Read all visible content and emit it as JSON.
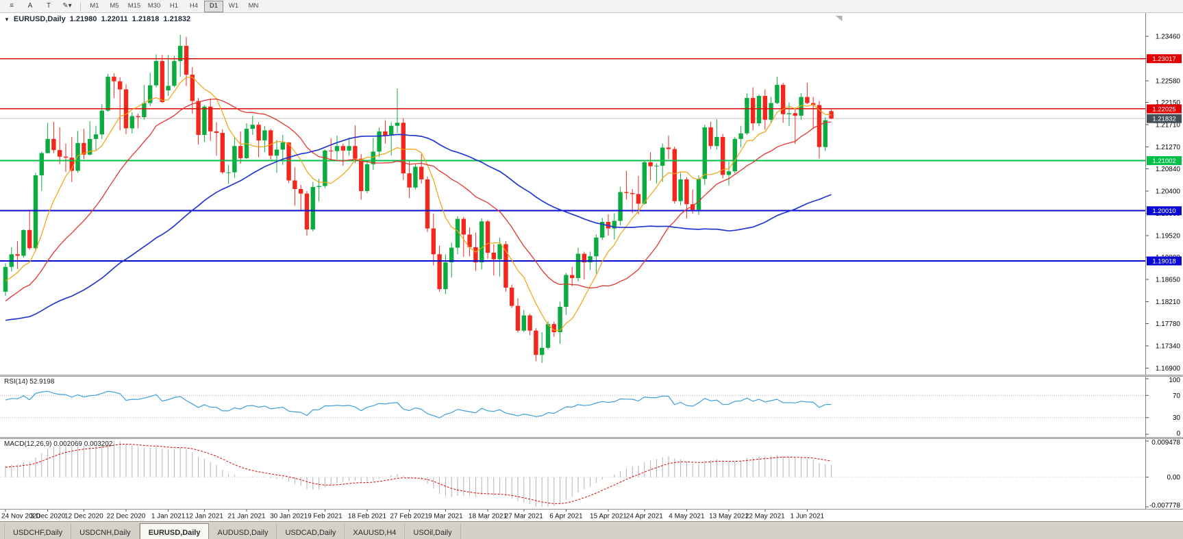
{
  "toolbar": {
    "tools": [
      {
        "name": "chart-objects-icon",
        "glyph": "≡"
      },
      {
        "name": "text-label-tool",
        "glyph": "A"
      },
      {
        "name": "text-cursor-tool",
        "glyph": "T"
      },
      {
        "name": "draw-tool",
        "glyph": "✎▾"
      }
    ],
    "timeframes": [
      "M1",
      "M5",
      "M15",
      "M30",
      "H1",
      "H4",
      "D1",
      "W1",
      "MN"
    ],
    "active_timeframe": "D1"
  },
  "chart": {
    "symbol_period": "EURUSD,Daily",
    "menu_icon": "▼",
    "ohlc": {
      "o": "1.21980",
      "h": "1.22011",
      "l": "1.21818",
      "c": "1.21832"
    }
  },
  "price_scale": {
    "labels": [
      "1.23460",
      "1.23020",
      "1.22580",
      "1.22150",
      "1.21710",
      "1.21270",
      "1.20840",
      "1.20400",
      "1.19960",
      "1.19520",
      "1.19090",
      "1.18650",
      "1.18210",
      "1.17780",
      "1.17340",
      "1.16900"
    ]
  },
  "hlines": [
    {
      "price": 1.23017,
      "label": "1.23017",
      "color": "#e00000",
      "width": 1.4
    },
    {
      "price": 1.22025,
      "label": "1.22025",
      "color": "#e00000",
      "width": 1.4
    },
    {
      "price": 1.21002,
      "label": "1.21002",
      "color": "#00c04a",
      "width": 1.6
    },
    {
      "price": 1.2001,
      "label": "1.20010",
      "color": "#0a0ad0",
      "width": 2
    },
    {
      "price": 1.19018,
      "label": "1.19018",
      "color": "#0a0ad0",
      "width": 2
    }
  ],
  "current_price": {
    "value": 1.21832,
    "label": "1.21832",
    "tag_color": "#454f58"
  },
  "rsi_pane": {
    "label": "RSI(14) 52.9198",
    "period": 14,
    "value": "52.9198",
    "scale_labels": [
      "100",
      "70",
      "30",
      "0"
    ],
    "levels": [
      70,
      30
    ],
    "line_color": "#3aa0dc"
  },
  "macd_pane": {
    "label": "MACD(12,26,9) 0.002069 0.003202",
    "params": "12,26,9",
    "macd_value": "0.002069",
    "signal_value": "0.003202",
    "scale_labels": [
      "0.009478",
      "0.00",
      "-0.007778"
    ],
    "hist_color": "#b2b2b2",
    "signal_color": "#dd0000"
  },
  "tabs": {
    "items": [
      "USDCHF,Daily",
      "USDCNH,Daily",
      "EURUSD,Daily",
      "AUDUSD,Daily",
      "USDCAD,Daily",
      "XAUUSD,H4",
      "USOil,Daily"
    ],
    "active_index": 2
  },
  "chart_data": {
    "type": "candlestick",
    "symbol": "EURUSD",
    "timeframe": "Daily",
    "title": "EURUSD,Daily 1.21980 1.22011 1.21818 1.21832",
    "y_range": {
      "top": 1.2392,
      "bottom": 1.1677
    },
    "colors": {
      "bull": "#0cab3f",
      "bear": "#f3271c"
    },
    "moving_averages": [
      {
        "period": 8,
        "color": "#f2a20d",
        "width": 1.2
      },
      {
        "period": 21,
        "color": "#e4342c",
        "width": 1.3
      },
      {
        "period": 55,
        "color": "#2337cf",
        "width": 1.7
      }
    ],
    "x_labels": [
      "24 Nov 2020",
      "3 Dec 2020",
      "12 Dec 2020",
      "22 Dec 2020",
      "1 Jan 2021",
      "12 Jan 2021",
      "21 Jan 2021",
      "30 Jan 2021",
      "9 Feb 2021",
      "18 Feb 2021",
      "27 Feb 2021",
      "9 Mar 2021",
      "18 Mar 2021",
      "27 Mar 2021",
      "6 Apr 2021",
      "15 Apr 2021",
      "24 Apr 2021",
      "4 May 2021",
      "13 May 2021",
      "22 May 2021",
      "1 Jun 2021"
    ],
    "x_label_last_index": 133,
    "pre_closes": [
      1.1782,
      1.1815,
      1.1837,
      1.1845,
      1.182,
      1.1787,
      1.1755,
      1.1741,
      1.1762,
      1.179,
      1.1835,
      1.1846,
      1.1802,
      1.1775,
      1.174,
      1.172,
      1.1745,
      1.1718,
      1.1686,
      1.1713,
      1.1745,
      1.1748,
      1.172,
      1.176,
      1.1786,
      1.1812,
      1.1842,
      1.182,
      1.1792,
      1.1748,
      1.17,
      1.1672,
      1.1645,
      1.1648,
      1.17,
      1.1721,
      1.1745,
      1.1772,
      1.181,
      1.1805,
      1.1772,
      1.1752,
      1.1775,
      1.1802,
      1.1832,
      1.1852,
      1.1871,
      1.1863,
      1.1855,
      1.184,
      1.1858,
      1.187,
      1.1885,
      1.1863,
      1.1838
    ],
    "candles": [
      [
        1.1841,
        1.1897,
        1.1833,
        1.189
      ],
      [
        1.189,
        1.1929,
        1.1881,
        1.1915
      ],
      [
        1.1915,
        1.1941,
        1.1886,
        1.1912
      ],
      [
        1.1912,
        1.1964,
        1.1908,
        1.1963
      ],
      [
        1.1963,
        1.2003,
        1.1924,
        1.1927
      ],
      [
        1.1927,
        1.2076,
        1.1921,
        1.2071
      ],
      [
        1.2071,
        1.2118,
        1.204,
        1.2115
      ],
      [
        1.2115,
        1.2175,
        1.2114,
        1.2143
      ],
      [
        1.2143,
        1.2177,
        1.2115,
        1.2121
      ],
      [
        1.2121,
        1.2166,
        1.2093,
        1.2108
      ],
      [
        1.2108,
        1.2134,
        1.2078,
        1.2106
      ],
      [
        1.2106,
        1.2147,
        1.2058,
        1.208
      ],
      [
        1.208,
        1.2159,
        1.2076,
        1.2135
      ],
      [
        1.2135,
        1.2163,
        1.2103,
        1.2112
      ],
      [
        1.2112,
        1.2178,
        1.211,
        1.2143
      ],
      [
        1.2143,
        1.2169,
        1.2121,
        1.2152
      ],
      [
        1.2152,
        1.2212,
        1.2143,
        1.2199
      ],
      [
        1.2199,
        1.2272,
        1.2197,
        1.2266
      ],
      [
        1.2266,
        1.2273,
        1.2224,
        1.2257
      ],
      [
        1.2257,
        1.2265,
        1.216,
        1.2241
      ],
      [
        1.2241,
        1.2251,
        1.2152,
        1.2164
      ],
      [
        1.2164,
        1.2196,
        1.2154,
        1.2188
      ],
      [
        1.2188,
        1.2193,
        1.2164,
        1.2186
      ],
      [
        1.2186,
        1.225,
        1.2181,
        1.2214
      ],
      [
        1.2214,
        1.2274,
        1.2208,
        1.2249
      ],
      [
        1.2249,
        1.231,
        1.2245,
        1.2297
      ],
      [
        1.2297,
        1.2309,
        1.2214,
        1.2216
      ],
      [
        1.2239,
        1.2309,
        1.2228,
        1.2248
      ],
      [
        1.2248,
        1.2307,
        1.2245,
        1.2297
      ],
      [
        1.2297,
        1.2349,
        1.2266,
        1.2327
      ],
      [
        1.2327,
        1.2345,
        1.2248,
        1.227
      ],
      [
        1.227,
        1.2285,
        1.2193,
        1.2218
      ],
      [
        1.2218,
        1.2224,
        1.2132,
        1.2151
      ],
      [
        1.2151,
        1.221,
        1.2137,
        1.2207
      ],
      [
        1.2207,
        1.2223,
        1.2139,
        1.2158
      ],
      [
        1.2158,
        1.2176,
        1.211,
        1.2155
      ],
      [
        1.2155,
        1.2162,
        1.2074,
        1.2077
      ],
      [
        1.2077,
        1.2091,
        1.2054,
        1.2077
      ],
      [
        1.2077,
        1.2145,
        1.2066,
        1.2129
      ],
      [
        1.2129,
        1.2158,
        1.2094,
        1.2105
      ],
      [
        1.2105,
        1.2174,
        1.2103,
        1.2163
      ],
      [
        1.2163,
        1.2189,
        1.2151,
        1.2171
      ],
      [
        1.2171,
        1.2176,
        1.2107,
        1.214
      ],
      [
        1.214,
        1.2169,
        1.2117,
        1.216
      ],
      [
        1.216,
        1.2163,
        1.2102,
        1.211
      ],
      [
        1.211,
        1.2141,
        1.2076,
        1.2122
      ],
      [
        1.2122,
        1.2151,
        1.2092,
        1.2136
      ],
      [
        1.2136,
        1.2137,
        1.2056,
        1.2061
      ],
      [
        1.2061,
        1.2087,
        1.2011,
        1.2044
      ],
      [
        1.2044,
        1.2052,
        1.2002,
        1.2035
      ],
      [
        1.2035,
        1.204,
        1.1952,
        1.1964
      ],
      [
        1.1964,
        1.2058,
        1.196,
        1.2048
      ],
      [
        1.2048,
        1.2064,
        1.2019,
        1.205
      ],
      [
        1.205,
        1.2122,
        1.2046,
        1.212
      ],
      [
        1.212,
        1.2144,
        1.21,
        1.2119
      ],
      [
        1.2119,
        1.215,
        1.2102,
        1.2129
      ],
      [
        1.2129,
        1.2134,
        1.209,
        1.212
      ],
      [
        1.212,
        1.2146,
        1.211,
        1.2129
      ],
      [
        1.2129,
        1.217,
        1.2095,
        1.2104
      ],
      [
        1.2104,
        1.2113,
        1.2023,
        1.204
      ],
      [
        1.204,
        1.2097,
        1.2036,
        1.2093
      ],
      [
        1.2093,
        1.2145,
        1.2082,
        1.2118
      ],
      [
        1.2118,
        1.2166,
        1.2107,
        1.2158
      ],
      [
        1.2158,
        1.218,
        1.2134,
        1.215
      ],
      [
        1.215,
        1.2176,
        1.211,
        1.2169
      ],
      [
        1.2169,
        1.2243,
        1.2155,
        1.2175
      ],
      [
        1.2175,
        1.2184,
        1.2062,
        1.2075
      ],
      [
        1.2075,
        1.2101,
        1.2026,
        1.2047
      ],
      [
        1.2047,
        1.2094,
        1.2043,
        1.2088
      ],
      [
        1.2088,
        1.2113,
        1.2055,
        1.2063
      ],
      [
        1.2063,
        1.2069,
        1.1959,
        1.1966
      ],
      [
        1.1966,
        1.1995,
        1.1893,
        1.1915
      ],
      [
        1.1915,
        1.1932,
        1.1841,
        1.1846
      ],
      [
        1.1846,
        1.1915,
        1.1836,
        1.1899
      ],
      [
        1.1899,
        1.1938,
        1.1869,
        1.1928
      ],
      [
        1.1928,
        1.199,
        1.1915,
        1.1985
      ],
      [
        1.1985,
        1.1989,
        1.191,
        1.1954
      ],
      [
        1.1954,
        1.1968,
        1.1911,
        1.1929
      ],
      [
        1.1929,
        1.1958,
        1.1882,
        1.1899
      ],
      [
        1.1899,
        1.1986,
        1.1885,
        1.198
      ],
      [
        1.198,
        1.1983,
        1.1906,
        1.1918
      ],
      [
        1.1918,
        1.1935,
        1.1873,
        1.1905
      ],
      [
        1.1905,
        1.1948,
        1.1871,
        1.1935
      ],
      [
        1.1935,
        1.1941,
        1.1841,
        1.1849
      ],
      [
        1.1849,
        1.1855,
        1.1809,
        1.1813
      ],
      [
        1.1813,
        1.1828,
        1.176,
        1.1764
      ],
      [
        1.1764,
        1.1805,
        1.1761,
        1.1794
      ],
      [
        1.1794,
        1.1797,
        1.1755,
        1.1764
      ],
      [
        1.1764,
        1.1769,
        1.1704,
        1.1716
      ],
      [
        1.1716,
        1.1761,
        1.17,
        1.173
      ],
      [
        1.173,
        1.1783,
        1.1727,
        1.1777
      ],
      [
        1.1777,
        1.1782,
        1.1752,
        1.1761
      ],
      [
        1.1761,
        1.1821,
        1.1738,
        1.1811
      ],
      [
        1.1811,
        1.1878,
        1.1795,
        1.1874
      ],
      [
        1.1874,
        1.189,
        1.1852,
        1.1868
      ],
      [
        1.1868,
        1.1928,
        1.1861,
        1.1916
      ],
      [
        1.1916,
        1.192,
        1.1865,
        1.1899
      ],
      [
        1.1899,
        1.192,
        1.1884,
        1.1911
      ],
      [
        1.1911,
        1.1954,
        1.1877,
        1.1948
      ],
      [
        1.1948,
        1.1987,
        1.1943,
        1.1979
      ],
      [
        1.1979,
        1.1994,
        1.1952,
        1.1966
      ],
      [
        1.1966,
        1.1996,
        1.1944,
        1.1981
      ],
      [
        1.1981,
        1.2048,
        1.1972,
        1.2038
      ],
      [
        1.2038,
        1.208,
        1.2023,
        1.2036
      ],
      [
        1.2036,
        1.2044,
        1.1997,
        1.2034
      ],
      [
        1.2034,
        1.207,
        1.1994,
        1.2015
      ],
      [
        1.2015,
        1.2101,
        1.2013,
        1.2097
      ],
      [
        1.2097,
        1.2117,
        1.2061,
        1.2089
      ],
      [
        1.2089,
        1.2095,
        1.2055,
        1.209
      ],
      [
        1.209,
        1.2134,
        1.2058,
        1.2126
      ],
      [
        1.2126,
        1.215,
        1.2103,
        1.2123
      ],
      [
        1.2123,
        1.2128,
        1.2015,
        1.202
      ],
      [
        1.202,
        1.2076,
        1.2012,
        1.2063
      ],
      [
        1.2063,
        1.2067,
        1.1986,
        1.2014
      ],
      [
        1.2014,
        1.2043,
        1.1995,
        1.2003
      ],
      [
        1.2003,
        1.2071,
        1.1993,
        1.2064
      ],
      [
        1.2064,
        1.2171,
        1.2052,
        1.2166
      ],
      [
        1.2166,
        1.2177,
        1.2123,
        1.2129
      ],
      [
        1.2129,
        1.2182,
        1.2122,
        1.2147
      ],
      [
        1.2147,
        1.2153,
        1.2065,
        1.2072
      ],
      [
        1.2072,
        1.2098,
        1.2051,
        1.2079
      ],
      [
        1.2079,
        1.2147,
        1.2075,
        1.2143
      ],
      [
        1.2143,
        1.2169,
        1.2127,
        1.2154
      ],
      [
        1.2154,
        1.2233,
        1.2151,
        1.2224
      ],
      [
        1.2224,
        1.2245,
        1.216,
        1.2174
      ],
      [
        1.2174,
        1.2231,
        1.2168,
        1.2228
      ],
      [
        1.2228,
        1.2241,
        1.2161,
        1.2181
      ],
      [
        1.2181,
        1.2226,
        1.2175,
        1.2214
      ],
      [
        1.2214,
        1.2266,
        1.2212,
        1.225
      ],
      [
        1.225,
        1.2254,
        1.2175,
        1.2192
      ],
      [
        1.2192,
        1.2215,
        1.2169,
        1.2194
      ],
      [
        1.2194,
        1.2205,
        1.2133,
        1.2189
      ],
      [
        1.2189,
        1.2233,
        1.2181,
        1.2226
      ],
      [
        1.2226,
        1.2254,
        1.2212,
        1.2214
      ],
      [
        1.2214,
        1.2226,
        1.2163,
        1.221
      ],
      [
        1.221,
        1.2218,
        1.2104,
        1.2127
      ],
      [
        1.2127,
        1.2186,
        1.2119,
        1.218
      ],
      [
        1.2198,
        1.22011,
        1.21818,
        1.21832
      ]
    ]
  }
}
